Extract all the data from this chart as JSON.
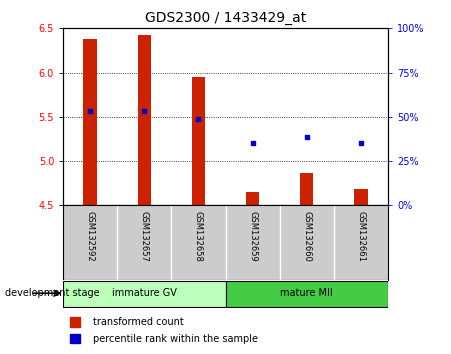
{
  "title": "GDS2300 / 1433429_at",
  "categories": [
    "GSM132592",
    "GSM132657",
    "GSM132658",
    "GSM132659",
    "GSM132660",
    "GSM132661"
  ],
  "bar_values": [
    6.38,
    6.43,
    5.95,
    4.65,
    4.87,
    4.68
  ],
  "bar_bottom": 4.5,
  "blue_dot_values": [
    5.57,
    5.57,
    5.47,
    5.2,
    5.27,
    5.2
  ],
  "ylim": [
    4.5,
    6.5
  ],
  "yticks_left": [
    4.5,
    5.0,
    5.5,
    6.0,
    6.5
  ],
  "yticks_right": [
    0,
    25,
    50,
    75,
    100
  ],
  "ytick_labels_right": [
    "0%",
    "25%",
    "50%",
    "75%",
    "100%"
  ],
  "bar_color": "#cc2200",
  "dot_color": "#0000cc",
  "group1_label": "immature GV",
  "group2_label": "mature MII",
  "group1_indices": [
    0,
    1,
    2
  ],
  "group2_indices": [
    3,
    4,
    5
  ],
  "group1_color": "#bbffbb",
  "group2_color": "#44cc44",
  "stage_label": "development stage",
  "legend_bar_label": "transformed count",
  "legend_dot_label": "percentile rank within the sample",
  "bar_width": 0.25,
  "tick_label_fontsize": 7,
  "title_fontsize": 10,
  "label_panel_bg": "#cccccc",
  "label_panel_divider": "#ffffff"
}
